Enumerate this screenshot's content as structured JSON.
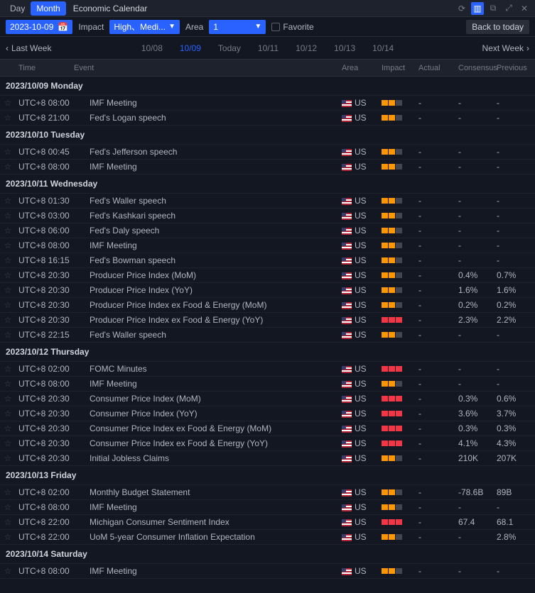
{
  "titlebar": {
    "tabs": [
      "Day",
      "Month"
    ],
    "active_tab": "Month",
    "title": "Economic Calendar"
  },
  "toolbar": {
    "date": "2023-10-09",
    "impact_label": "Impact",
    "impact_value": "High、Medi...",
    "area_label": "Area",
    "area_value": "1",
    "favorite_label": "Favorite",
    "back_label": "Back to today"
  },
  "weeknav": {
    "prev": "Last Week",
    "next": "Next Week",
    "dates": [
      "10/08",
      "10/09",
      "Today",
      "10/11",
      "10/12",
      "10/13",
      "10/14"
    ],
    "active": "10/09"
  },
  "columns": {
    "time": "Time",
    "event": "Event",
    "area": "Area",
    "impact": "Impact",
    "actual": "Actual",
    "consensus": "Consensus",
    "previous": "Previous"
  },
  "area_code": "US",
  "days": [
    {
      "header": "2023/10/09 Monday",
      "rows": [
        {
          "time": "UTC+8 08:00",
          "event": "IMF Meeting",
          "impact": 2,
          "actual": "-",
          "consensus": "-",
          "previous": "-"
        },
        {
          "time": "UTC+8 21:00",
          "event": "Fed's Logan speech",
          "impact": 2,
          "actual": "-",
          "consensus": "-",
          "previous": "-"
        }
      ]
    },
    {
      "header": "2023/10/10 Tuesday",
      "rows": [
        {
          "time": "UTC+8 00:45",
          "event": "Fed's Jefferson speech",
          "impact": 2,
          "actual": "-",
          "consensus": "-",
          "previous": "-"
        },
        {
          "time": "UTC+8 08:00",
          "event": "IMF Meeting",
          "impact": 2,
          "actual": "-",
          "consensus": "-",
          "previous": "-"
        }
      ]
    },
    {
      "header": "2023/10/11 Wednesday",
      "rows": [
        {
          "time": "UTC+8 01:30",
          "event": "Fed's Waller speech",
          "impact": 2,
          "actual": "-",
          "consensus": "-",
          "previous": "-"
        },
        {
          "time": "UTC+8 03:00",
          "event": "Fed's Kashkari speech",
          "impact": 2,
          "actual": "-",
          "consensus": "-",
          "previous": "-"
        },
        {
          "time": "UTC+8 06:00",
          "event": "Fed's Daly speech",
          "impact": 2,
          "actual": "-",
          "consensus": "-",
          "previous": "-"
        },
        {
          "time": "UTC+8 08:00",
          "event": "IMF Meeting",
          "impact": 2,
          "actual": "-",
          "consensus": "-",
          "previous": "-"
        },
        {
          "time": "UTC+8 16:15",
          "event": "Fed's Bowman speech",
          "impact": 2,
          "actual": "-",
          "consensus": "-",
          "previous": "-"
        },
        {
          "time": "UTC+8 20:30",
          "event": "Producer Price Index (MoM)",
          "impact": 2,
          "actual": "-",
          "consensus": "0.4%",
          "previous": "0.7%"
        },
        {
          "time": "UTC+8 20:30",
          "event": "Producer Price Index (YoY)",
          "impact": 2,
          "actual": "-",
          "consensus": "1.6%",
          "previous": "1.6%"
        },
        {
          "time": "UTC+8 20:30",
          "event": "Producer Price Index ex Food & Energy (MoM)",
          "impact": 2,
          "actual": "-",
          "consensus": "0.2%",
          "previous": "0.2%"
        },
        {
          "time": "UTC+8 20:30",
          "event": "Producer Price Index ex Food & Energy (YoY)",
          "impact": 3,
          "actual": "-",
          "consensus": "2.3%",
          "previous": "2.2%"
        },
        {
          "time": "UTC+8 22:15",
          "event": "Fed's Waller speech",
          "impact": 2,
          "actual": "-",
          "consensus": "-",
          "previous": "-"
        }
      ]
    },
    {
      "header": "2023/10/12 Thursday",
      "rows": [
        {
          "time": "UTC+8 02:00",
          "event": "FOMC Minutes",
          "impact": 3,
          "actual": "-",
          "consensus": "-",
          "previous": "-"
        },
        {
          "time": "UTC+8 08:00",
          "event": "IMF Meeting",
          "impact": 2,
          "actual": "-",
          "consensus": "-",
          "previous": "-"
        },
        {
          "time": "UTC+8 20:30",
          "event": "Consumer Price Index (MoM)",
          "impact": 3,
          "actual": "-",
          "consensus": "0.3%",
          "previous": "0.6%"
        },
        {
          "time": "UTC+8 20:30",
          "event": "Consumer Price Index (YoY)",
          "impact": 3,
          "actual": "-",
          "consensus": "3.6%",
          "previous": "3.7%"
        },
        {
          "time": "UTC+8 20:30",
          "event": "Consumer Price Index ex Food & Energy (MoM)",
          "impact": 3,
          "actual": "-",
          "consensus": "0.3%",
          "previous": "0.3%"
        },
        {
          "time": "UTC+8 20:30",
          "event": "Consumer Price Index ex Food & Energy (YoY)",
          "impact": 3,
          "actual": "-",
          "consensus": "4.1%",
          "previous": "4.3%"
        },
        {
          "time": "UTC+8 20:30",
          "event": "Initial Jobless Claims",
          "impact": 2,
          "actual": "-",
          "consensus": "210K",
          "previous": "207K"
        }
      ]
    },
    {
      "header": "2023/10/13 Friday",
      "rows": [
        {
          "time": "UTC+8 02:00",
          "event": "Monthly Budget Statement",
          "impact": 2,
          "actual": "-",
          "consensus": "-78.6B",
          "previous": "89B"
        },
        {
          "time": "UTC+8 08:00",
          "event": "IMF Meeting",
          "impact": 2,
          "actual": "-",
          "consensus": "-",
          "previous": "-"
        },
        {
          "time": "UTC+8 22:00",
          "event": "Michigan Consumer Sentiment Index",
          "impact": 3,
          "actual": "-",
          "consensus": "67.4",
          "previous": "68.1"
        },
        {
          "time": "UTC+8 22:00",
          "event": "UoM 5-year Consumer Inflation Expectation",
          "impact": 2,
          "actual": "-",
          "consensus": "-",
          "previous": "2.8%"
        }
      ]
    },
    {
      "header": "2023/10/14 Saturday",
      "rows": [
        {
          "time": "UTC+8 08:00",
          "event": "IMF Meeting",
          "impact": 2,
          "actual": "-",
          "consensus": "-",
          "previous": "-"
        }
      ]
    }
  ]
}
